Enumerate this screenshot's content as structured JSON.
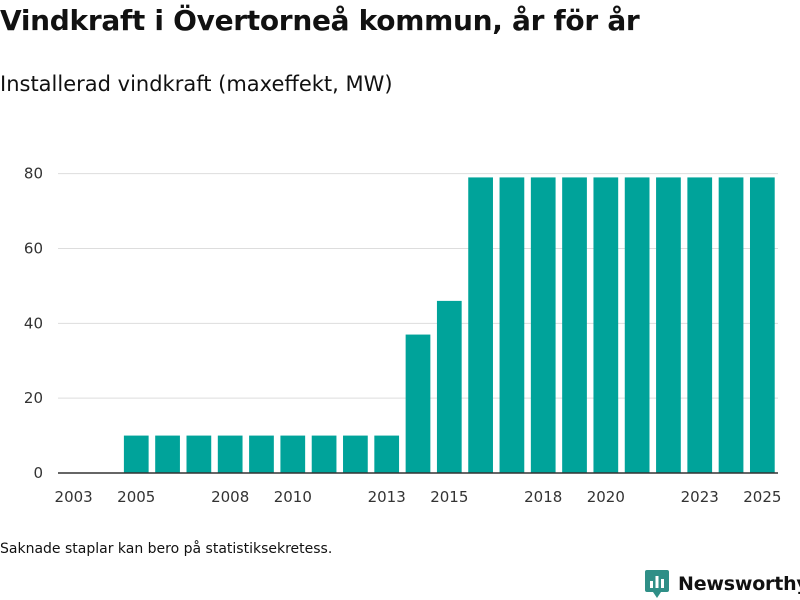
{
  "title": "Vindkraft i Övertorneå kommun, år för år",
  "subtitle": "Installerad vindkraft (maxeffekt, MW)",
  "footnote": "Saknade staplar kan bero på statistiksekretess.",
  "brand": {
    "name": "Newsworthy",
    "icon": "newsworthy-logo-icon"
  },
  "colors": {
    "bar": "#00A39A",
    "grid": "#dddddd",
    "axis": "#333333",
    "brand": "#2f8f87"
  },
  "chart_data": {
    "type": "bar",
    "title": "Vindkraft i Övertorneå kommun, år för år",
    "ylabel": "Installerad vindkraft (maxeffekt, MW)",
    "xlabel": "",
    "categories": [
      "2003",
      "2004",
      "2005",
      "2006",
      "2007",
      "2008",
      "2009",
      "2010",
      "2011",
      "2012",
      "2013",
      "2014",
      "2015",
      "2016",
      "2017",
      "2018",
      "2019",
      "2020",
      "2021",
      "2022",
      "2023",
      "2024",
      "2025"
    ],
    "values": [
      null,
      null,
      10,
      10,
      10,
      10,
      10,
      10,
      10,
      10,
      10,
      37,
      46,
      79,
      79,
      79,
      79,
      79,
      79,
      79,
      79,
      79,
      79
    ],
    "x_tick_labels": [
      "2003",
      "2005",
      "2008",
      "2010",
      "2013",
      "2015",
      "2018",
      "2020",
      "2023",
      "2025"
    ],
    "y_ticks": [
      0,
      20,
      40,
      60,
      80
    ],
    "ylim": [
      0,
      89
    ],
    "grid": true,
    "legend": "none"
  }
}
